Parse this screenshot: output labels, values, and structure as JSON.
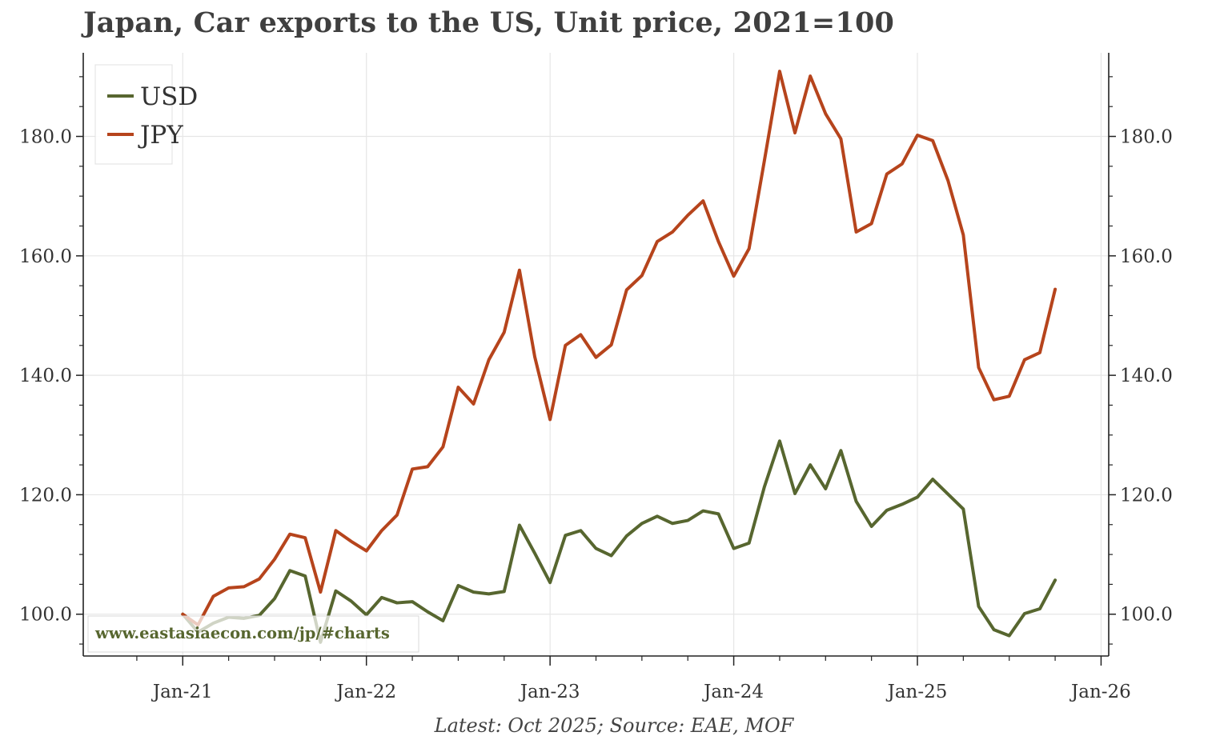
{
  "chart_data": {
    "type": "line",
    "title": "Japan, Car exports to the US, Unit price, 2021=100",
    "footnote": "Latest: Oct 2025; Source: EAE, MOF",
    "watermark": "www.eastasiaecon.com/jp/#charts",
    "xlabel": "",
    "ylabel": "",
    "x_ticks": [
      "Jan-21",
      "Jan-22",
      "Jan-23",
      "Jan-24",
      "Jan-25",
      "Jan-26"
    ],
    "y_ticks": [
      "100.0",
      "120.0",
      "140.0",
      "160.0",
      "180.0"
    ],
    "ylim": [
      93,
      194
    ],
    "x_range_months": [
      -6.5,
      60.5
    ],
    "grid": true,
    "legend_position": "top-left",
    "series": [
      {
        "name": "USD",
        "color": "#57662f",
        "values": [
          100,
          97,
          98.5,
          99.5,
          99.3,
          99.8,
          102.6,
          107.3,
          106.4,
          95.3,
          103.9,
          102.2,
          99.9,
          102.8,
          101.9,
          102.1,
          100.4,
          98.9,
          104.8,
          103.7,
          103.4,
          103.8,
          114.9,
          110.2,
          105.3,
          113.2,
          114.0,
          111.0,
          109.8,
          113.1,
          115.2,
          116.4,
          115.2,
          115.7,
          117.3,
          116.8,
          111.0,
          111.9,
          121.3,
          129.0,
          120.2,
          125.0,
          121.0,
          127.4,
          118.9,
          114.7,
          117.4,
          118.4,
          119.6,
          122.6,
          120.1,
          117.6,
          101.3,
          97.4,
          96.4,
          100.1,
          100.9,
          105.7
        ]
      },
      {
        "name": "JPY",
        "color": "#b6441c",
        "values": [
          100,
          98.2,
          103.0,
          104.4,
          104.6,
          105.9,
          109.2,
          113.4,
          112.8,
          103.7,
          114.0,
          112.2,
          110.6,
          114.0,
          116.6,
          124.3,
          124.7,
          128.0,
          138.0,
          135.2,
          142.6,
          147.2,
          157.6,
          143.1,
          132.6,
          145.0,
          146.8,
          143.0,
          145.1,
          154.3,
          156.7,
          162.4,
          164.0,
          166.8,
          169.2,
          162.4,
          156.6,
          161.2,
          175.9,
          190.9,
          180.6,
          190.1,
          183.8,
          179.6,
          164.0,
          165.4,
          173.7,
          175.4,
          180.2,
          179.3,
          172.6,
          163.5,
          141.3,
          135.9,
          136.5,
          142.6,
          143.8,
          154.4
        ]
      }
    ]
  }
}
